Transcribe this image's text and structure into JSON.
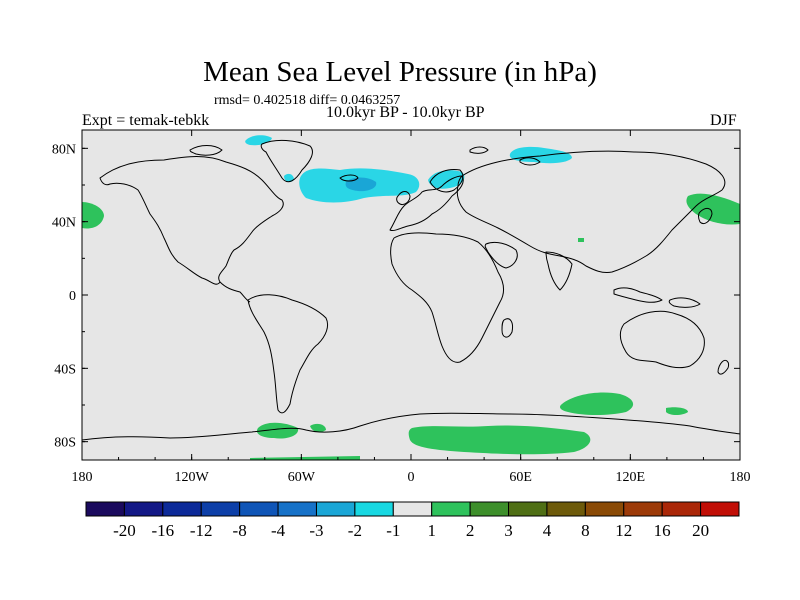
{
  "title": "Mean Sea Level Pressure (in hPa)",
  "stats": "rmsd= 0.402518 diff= 0.0463257",
  "experiment": "Expt = temak-tebkk",
  "period": "10.0kyr BP - 10.0kyr BP",
  "season": "DJF",
  "map_data": {
    "projection": "cylindrical equidistant",
    "lon_range": [
      -180,
      180
    ],
    "lat_range": [
      -90,
      90
    ],
    "x_tick_labels": [
      "180",
      "120W",
      "60W",
      "0",
      "60E",
      "120E",
      "180"
    ],
    "x_tick_lons": [
      -180,
      -120,
      -60,
      0,
      60,
      120,
      180
    ],
    "y_tick_labels": [
      "80N",
      "40N",
      "0",
      "40S",
      "80S"
    ],
    "y_tick_lats": [
      80,
      40,
      0,
      -40,
      -80
    ],
    "colorbar": {
      "labels": [
        "-20",
        "-16",
        "-12",
        "-8",
        "-4",
        "-3",
        "-2",
        "-1",
        "1",
        "2",
        "3",
        "4",
        "8",
        "12",
        "16",
        "20"
      ],
      "colors": [
        "#1b0a5e",
        "#131886",
        "#0c2a99",
        "#0d3fa8",
        "#0f55b7",
        "#1772c8",
        "#1aa6d6",
        "#18d8e2",
        "#e6e6e6",
        "#2ec25c",
        "#3d8f2b",
        "#4f6f15",
        "#6d5a0a",
        "#8a4a06",
        "#9c3a08",
        "#aa2708",
        "#c10e06"
      ]
    },
    "colors": {
      "background": "#e6e6e6",
      "negative_light": "#2ad6e6",
      "negative_dark": "#1aa6d6",
      "positive_light": "#2ec25c"
    }
  }
}
